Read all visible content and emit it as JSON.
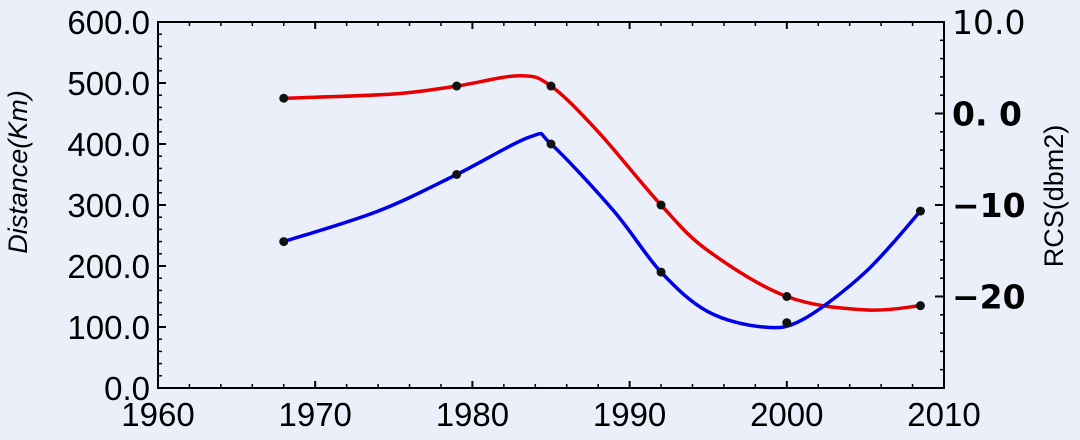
{
  "chart_data": {
    "type": "line",
    "title": "",
    "xlabel": "",
    "ylabel": "Distance(Km)",
    "y2label": "RCS(dbm2)",
    "xlim": [
      1960,
      2010
    ],
    "ylim": [
      0,
      600
    ],
    "y2lim": [
      -30,
      10
    ],
    "x_ticks": [
      "1960",
      "1970",
      "1980",
      "1990",
      "2000",
      "2010"
    ],
    "y_ticks": [
      "0.0",
      "100.0",
      "200.0",
      "300.0",
      "400.0",
      "500.0",
      "600.0"
    ],
    "y2_ticks": [
      {
        "label": "10.0",
        "value": 10,
        "bold": false
      },
      {
        "label": "0. 0",
        "value": 0,
        "bold": true
      },
      {
        "label": "−10",
        "value": -10,
        "bold": true
      },
      {
        "label": "−20",
        "value": -20,
        "bold": true
      }
    ],
    "grid": false,
    "legend": "none",
    "series": [
      {
        "color": "#e80000",
        "axis": "left",
        "points": [
          [
            1968,
            475
          ],
          [
            1979,
            495
          ],
          [
            1985,
            495
          ],
          [
            1992,
            300
          ],
          [
            2000,
            150
          ],
          [
            2008.5,
            135
          ]
        ],
        "curve": [
          [
            1968,
            475
          ],
          [
            1975,
            482
          ],
          [
            1979,
            495
          ],
          [
            1983,
            512
          ],
          [
            1985,
            495
          ],
          [
            1988,
            420
          ],
          [
            1992,
            300
          ],
          [
            1995,
            225
          ],
          [
            2000,
            150
          ],
          [
            2005,
            128
          ],
          [
            2008.5,
            135
          ]
        ]
      },
      {
        "color": "#0000e8",
        "axis": "left",
        "points": [
          [
            1968,
            240
          ],
          [
            1979,
            350
          ],
          [
            1985,
            400
          ],
          [
            1992,
            190
          ],
          [
            2000,
            107
          ],
          [
            2008.5,
            290
          ]
        ],
        "curve": [
          [
            1968,
            240
          ],
          [
            1974,
            290
          ],
          [
            1979,
            350
          ],
          [
            1983.7,
            412
          ],
          [
            1985,
            400
          ],
          [
            1989,
            290
          ],
          [
            1992,
            190
          ],
          [
            1995,
            125
          ],
          [
            1998.5,
            100
          ],
          [
            2001,
            112
          ],
          [
            2005,
            190
          ],
          [
            2008.5,
            290
          ]
        ]
      }
    ]
  }
}
